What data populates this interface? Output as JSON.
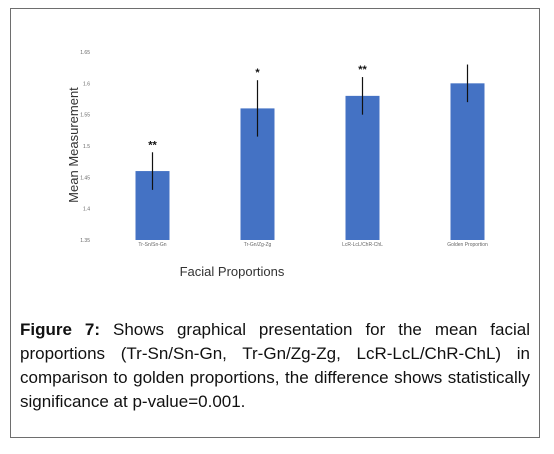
{
  "chart_data": {
    "type": "bar",
    "categories": [
      "Tr-Sn/Sn-Gn",
      "Tr-Gn/Zg-Zg",
      "LcR-LcL/ChR-ChL",
      "Golden Proportion"
    ],
    "values": [
      1.46,
      1.56,
      1.58,
      1.6
    ],
    "error": [
      0.03,
      0.045,
      0.03,
      0.03
    ],
    "significance": [
      "**",
      "*",
      "**",
      ""
    ],
    "ylim": [
      1.35,
      1.65
    ],
    "yticks": [
      "1.35",
      "1.4",
      "1.45",
      "1.5",
      "1.55",
      "1.6",
      "1.65"
    ],
    "ylabel": "Mean Measurement",
    "xlabel": "Facial Proportions",
    "bar_color": "#4472c4",
    "grid": false
  },
  "caption": {
    "label": "Figure 7:",
    "text": "Shows graphical presentation for the mean facial proportions (Tr-Sn/Sn-Gn, Tr-Gn/Zg-Zg, LcR-LcL/ChR-ChL) in comparison to golden proportions, the difference shows statistically significance at p-value=0.001."
  }
}
